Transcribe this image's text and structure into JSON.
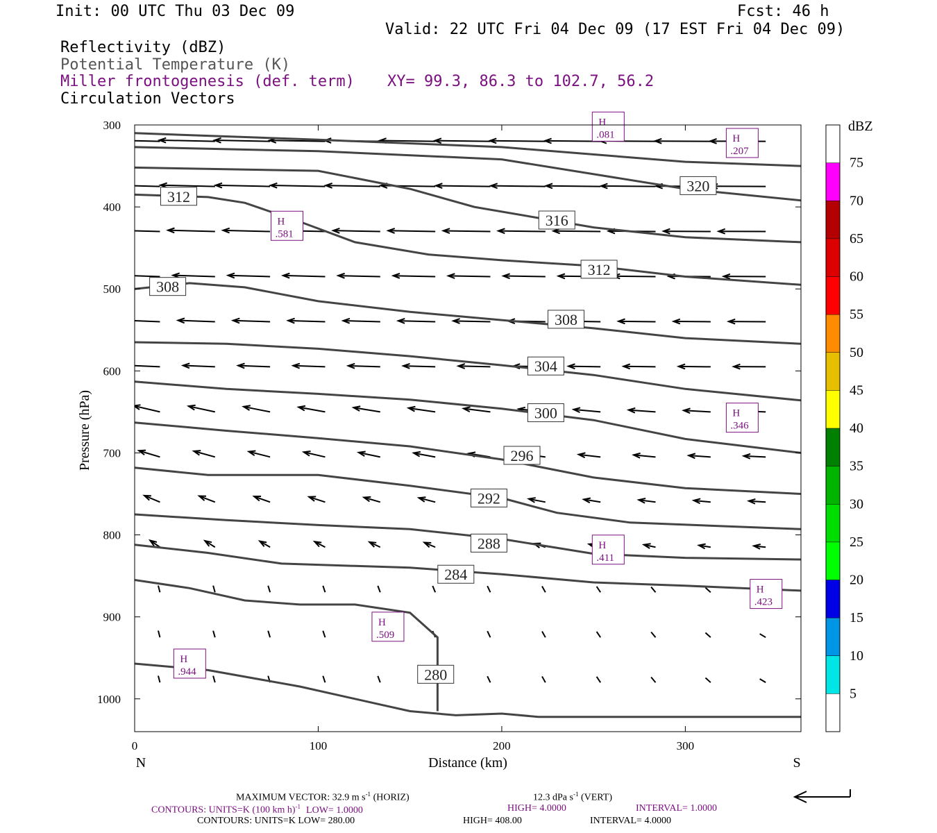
{
  "header": {
    "init": "Init: 00 UTC Thu 03 Dec 09",
    "fcst": "Fcst:   46 h",
    "valid": "Valid: 22 UTC Fri 04 Dec 09 (17 EST Fri 04 Dec 09)",
    "field1": "Reflectivity (dBZ)",
    "field2": "Potential Temperature (K)",
    "field3": "Miller frontogenesis (def. term)",
    "xy": "XY=  99.3, 86.3 to 102.7, 56.2",
    "field4": "Circulation Vectors"
  },
  "footer": {
    "max_vector": "MAXIMUM VECTOR:  32.9 m s",
    "max_vector_exp": "-1",
    "max_vector_horiz": " (HORIZ)",
    "max_vector_vert": "12.3 dPa s",
    "max_vector_vert_exp": "-1",
    "max_vector_vert_tail": " (VERT)",
    "contours1": "CONTOURS:  UNITS=K (100 km h)",
    "contours1_exp": "-1",
    "contours1_low": "LOW=   1.0000",
    "contours1_high": "HIGH=  4.0000",
    "contours1_int": "INTERVAL=   1.0000",
    "contours2": "CONTOURS:  UNITS=K   LOW=   280.00",
    "contours2_high": "HIGH=   408.00",
    "contours2_int": "INTERVAL=    4.0000"
  },
  "colors": {
    "theta": "#444444",
    "frontogenesis": "#7b1080",
    "vector": "#000000"
  },
  "chart_data": {
    "type": "line",
    "xlabel": "Distance (km)",
    "ylabel": "Pressure (hPa)",
    "xlim": [
      0,
      363
    ],
    "ylim": [
      300,
      1040
    ],
    "y_inverted": true,
    "x_ticks": [
      0,
      100,
      200,
      300
    ],
    "y_ticks": [
      300,
      400,
      500,
      600,
      700,
      800,
      900,
      1000
    ],
    "end_labels": {
      "left": "N",
      "right": "S"
    },
    "colorbar": {
      "unit": "dBZ",
      "levels": [
        5,
        10,
        15,
        20,
        25,
        30,
        35,
        40,
        45,
        50,
        55,
        60,
        65,
        70,
        75
      ],
      "colors": [
        "#00e5e5",
        "#0096e6",
        "#0000e6",
        "#00ff00",
        "#00dd00",
        "#00b400",
        "#008000",
        "#ffff00",
        "#e6c000",
        "#ff8c00",
        "#ff0000",
        "#dd0000",
        "#b40000",
        "#ff00ff",
        "#9955cc"
      ]
    },
    "theta_contours": [
      {
        "label": "320",
        "label_at": [
          307,
          374
        ],
        "points": [
          [
            0,
            310
          ],
          [
            100,
            318
          ],
          [
            200,
            327
          ],
          [
            300,
            345
          ],
          [
            363,
            350
          ]
        ]
      },
      {
        "label": "",
        "points": [
          [
            0,
            327
          ],
          [
            100,
            332
          ],
          [
            200,
            342
          ],
          [
            300,
            378
          ],
          [
            363,
            392
          ]
        ]
      },
      {
        "label": "316",
        "label_at": [
          230,
          416
        ],
        "points": [
          [
            0,
            352
          ],
          [
            100,
            356
          ],
          [
            150,
            378
          ],
          [
            185,
            400
          ],
          [
            250,
            425
          ],
          [
            300,
            437
          ],
          [
            363,
            443
          ]
        ]
      },
      {
        "label": "312",
        "label_at": [
          24,
          387
        ],
        "points": [
          [
            0,
            385
          ],
          [
            40,
            388
          ],
          [
            60,
            395
          ],
          [
            90,
            418
          ],
          [
            120,
            443
          ],
          [
            160,
            458
          ],
          [
            200,
            465
          ],
          [
            250,
            472
          ],
          [
            300,
            485
          ],
          [
            363,
            495
          ]
        ]
      },
      {
        "label": "312",
        "label_at": [
          253,
          476
        ],
        "points": []
      },
      {
        "label": "308",
        "label_at": [
          18,
          497
        ],
        "points": [
          [
            0,
            500
          ],
          [
            30,
            493
          ],
          [
            60,
            498
          ],
          [
            100,
            515
          ],
          [
            150,
            528
          ],
          [
            200,
            538
          ],
          [
            250,
            548
          ],
          [
            300,
            560
          ],
          [
            363,
            567
          ]
        ]
      },
      {
        "label": "308",
        "label_at": [
          235,
          537
        ],
        "points": []
      },
      {
        "label": "304",
        "label_at": [
          224,
          594
        ],
        "points": [
          [
            0,
            565
          ],
          [
            50,
            567
          ],
          [
            100,
            573
          ],
          [
            150,
            582
          ],
          [
            200,
            593
          ],
          [
            250,
            605
          ],
          [
            300,
            622
          ],
          [
            363,
            636
          ]
        ]
      },
      {
        "label": "300",
        "label_at": [
          224,
          651
        ],
        "points": [
          [
            0,
            613
          ],
          [
            50,
            622
          ],
          [
            100,
            628
          ],
          [
            150,
            635
          ],
          [
            200,
            646
          ],
          [
            250,
            660
          ],
          [
            300,
            683
          ],
          [
            363,
            700
          ]
        ]
      },
      {
        "label": "296",
        "label_at": [
          211,
          703
        ],
        "points": [
          [
            0,
            663
          ],
          [
            50,
            673
          ],
          [
            100,
            682
          ],
          [
            150,
            692
          ],
          [
            200,
            708
          ],
          [
            250,
            730
          ],
          [
            300,
            743
          ],
          [
            363,
            750
          ]
        ]
      },
      {
        "label": "292",
        "label_at": [
          193,
          755
        ],
        "points": [
          [
            0,
            718
          ],
          [
            40,
            727
          ],
          [
            100,
            727
          ],
          [
            150,
            740
          ],
          [
            200,
            755
          ],
          [
            230,
            773
          ],
          [
            270,
            785
          ],
          [
            363,
            793
          ]
        ]
      },
      {
        "label": "288",
        "label_at": [
          193,
          810
        ],
        "points": [
          [
            0,
            775
          ],
          [
            50,
            782
          ],
          [
            100,
            788
          ],
          [
            150,
            793
          ],
          [
            200,
            805
          ],
          [
            250,
            823
          ],
          [
            300,
            828
          ],
          [
            363,
            830
          ]
        ]
      },
      {
        "label": "284",
        "label_at": [
          175,
          848
        ],
        "points": [
          [
            0,
            812
          ],
          [
            40,
            822
          ],
          [
            80,
            835
          ],
          [
            150,
            840
          ],
          [
            200,
            848
          ],
          [
            250,
            858
          ],
          [
            300,
            862
          ],
          [
            363,
            868
          ]
        ]
      },
      {
        "label": "280",
        "label_at": [
          164,
          970
        ],
        "points": [
          [
            0,
            855
          ],
          [
            30,
            865
          ],
          [
            60,
            880
          ],
          [
            90,
            885
          ],
          [
            120,
            885
          ],
          [
            150,
            895
          ],
          [
            165,
            925
          ],
          [
            165,
            1015
          ]
        ]
      },
      {
        "label": "",
        "points": [
          [
            0,
            957
          ],
          [
            40,
            965
          ],
          [
            90,
            985
          ],
          [
            130,
            1005
          ],
          [
            150,
            1015
          ],
          [
            175,
            1020
          ],
          [
            200,
            1018
          ],
          [
            220,
            1022
          ],
          [
            363,
            1022
          ]
        ]
      }
    ],
    "frontogenesis_maxima": [
      {
        "label": "H",
        "value": ".081",
        "at": [
          258,
          302
        ]
      },
      {
        "label": "H",
        "value": ".207",
        "at": [
          331,
          322
        ]
      },
      {
        "label": "H",
        "value": ".581",
        "at": [
          83,
          423
        ]
      },
      {
        "label": "H",
        "value": ".346",
        "at": [
          331,
          657
        ]
      },
      {
        "label": "H",
        "value": ".411",
        "at": [
          258,
          818
        ]
      },
      {
        "label": "H",
        "value": ".423",
        "at": [
          344,
          872
        ]
      },
      {
        "label": "H",
        "value": ".509",
        "at": [
          138,
          912
        ]
      },
      {
        "label": "H",
        "value": ".944",
        "at": [
          30,
          957
        ]
      }
    ],
    "circulation_vectors_max": {
      "u_ms": 32.9,
      "w_dPa_s": 12.3
    }
  }
}
